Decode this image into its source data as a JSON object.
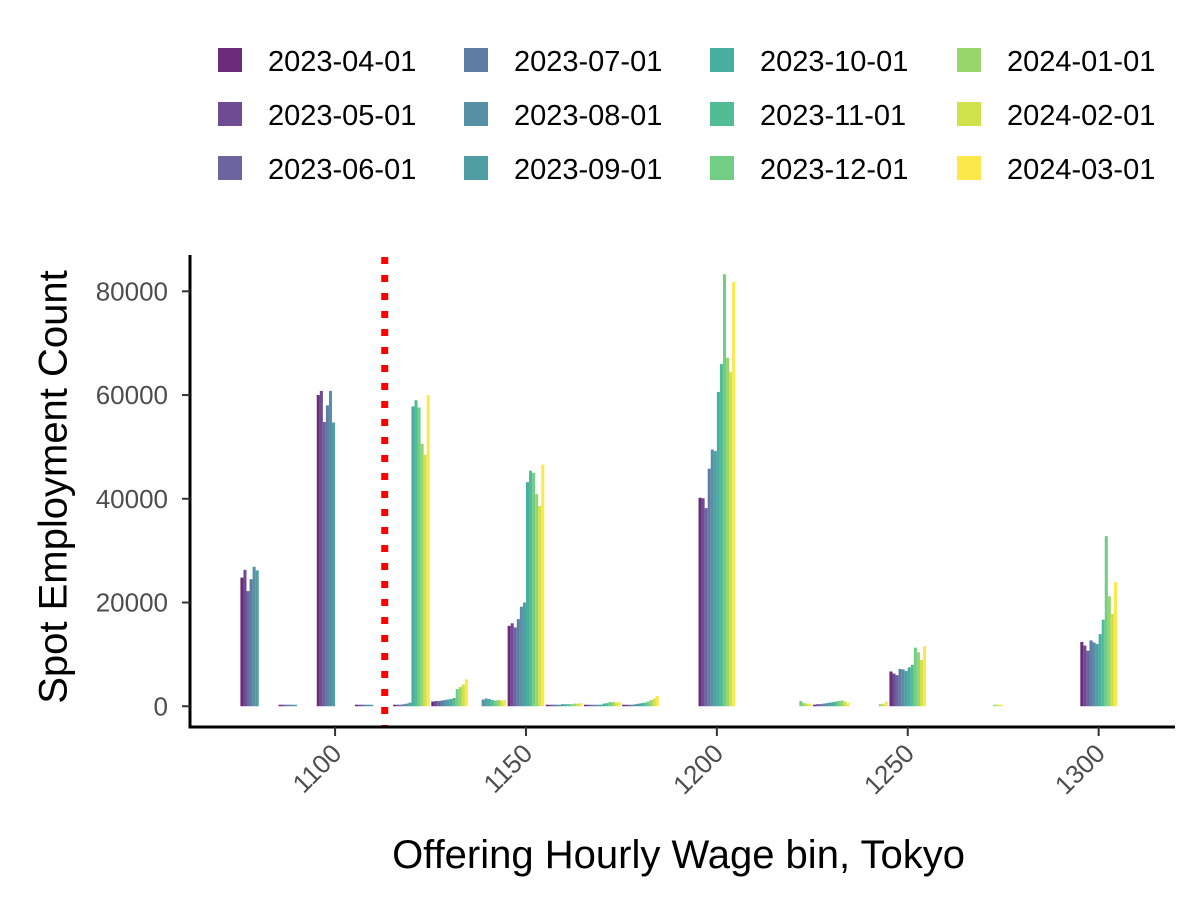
{
  "chart_data": {
    "type": "bar",
    "title": "",
    "xlabel": "Offering Hourly Wage bin, Tokyo",
    "ylabel": "Spot Employment Count",
    "xlim": [
      1062,
      1320
    ],
    "ylim": [
      -4000,
      87000
    ],
    "xticks": [
      1100,
      1150,
      1200,
      1250,
      1300
    ],
    "xtick_labels": [
      "1100",
      "1150",
      "1200",
      "1250",
      "1300"
    ],
    "yticks": [
      0,
      20000,
      40000,
      60000,
      80000
    ],
    "ytick_labels": [
      "0",
      "20000",
      "40000",
      "60000",
      "80000"
    ],
    "grid": false,
    "legend_position": "top",
    "reference_line": {
      "x": 1113,
      "color": "#ff0000",
      "style": "dotted"
    },
    "bins": [
      1080,
      1090,
      1100,
      1110,
      1120,
      1130,
      1140,
      1150,
      1160,
      1170,
      1180,
      1190,
      1200,
      1210,
      1220,
      1230,
      1240,
      1250,
      1260,
      1270,
      1280,
      1290,
      1300
    ],
    "series": [
      {
        "name": "2023-04-01",
        "color": "#6a2c78",
        "values": [
          24800,
          300,
          60000,
          300,
          300,
          900,
          0,
          15500,
          300,
          200,
          200,
          0,
          40200,
          0,
          0,
          300,
          0,
          6700,
          0,
          0,
          0,
          0,
          12400
        ]
      },
      {
        "name": "2023-05-01",
        "color": "#6f4b94",
        "values": [
          26300,
          300,
          60800,
          300,
          300,
          1000,
          0,
          16000,
          300,
          200,
          300,
          0,
          40100,
          0,
          0,
          400,
          0,
          6300,
          0,
          0,
          0,
          0,
          11700
        ]
      },
      {
        "name": "2023-06-01",
        "color": "#6a659f",
        "values": [
          22200,
          300,
          54800,
          300,
          300,
          1000,
          0,
          15200,
          300,
          200,
          300,
          0,
          38200,
          0,
          0,
          400,
          0,
          6000,
          0,
          0,
          0,
          0,
          10700
        ]
      },
      {
        "name": "2023-07-01",
        "color": "#5f7ca4",
        "values": [
          24500,
          300,
          58000,
          300,
          400,
          1100,
          0,
          16800,
          300,
          200,
          300,
          0,
          45800,
          0,
          0,
          500,
          0,
          7200,
          0,
          0,
          0,
          0,
          12700
        ]
      },
      {
        "name": "2023-08-01",
        "color": "#5690a5",
        "values": [
          26900,
          300,
          60800,
          300,
          500,
          1200,
          1300,
          19200,
          300,
          300,
          400,
          0,
          49500,
          0,
          0,
          600,
          0,
          7100,
          0,
          0,
          0,
          0,
          12300
        ]
      },
      {
        "name": "2023-09-01",
        "color": "#4f9ea4",
        "values": [
          26200,
          300,
          54700,
          300,
          700,
          1300,
          1500,
          20000,
          400,
          300,
          500,
          0,
          49200,
          0,
          0,
          700,
          0,
          6800,
          0,
          0,
          0,
          0,
          12000
        ]
      },
      {
        "name": "2023-10-01",
        "color": "#47aea0",
        "values": [
          null,
          null,
          null,
          null,
          57800,
          1400,
          1400,
          43200,
          400,
          500,
          600,
          0,
          60600,
          0,
          0,
          800,
          0,
          7500,
          0,
          0,
          0,
          0,
          13900
        ]
      },
      {
        "name": "2023-11-01",
        "color": "#52bd95",
        "values": [
          null,
          null,
          null,
          null,
          59000,
          1600,
          1200,
          45400,
          400,
          600,
          700,
          0,
          66000,
          0,
          0,
          900,
          0,
          8000,
          0,
          0,
          0,
          0,
          16700
        ]
      },
      {
        "name": "2023-12-01",
        "color": "#72cd85",
        "values": [
          null,
          null,
          null,
          null,
          57600,
          3300,
          1100,
          45000,
          400,
          800,
          900,
          0,
          83300,
          0,
          1000,
          1000,
          0,
          11300,
          0,
          0,
          0,
          0,
          32800
        ]
      },
      {
        "name": "2024-01-01",
        "color": "#98d66c",
        "values": [
          null,
          null,
          null,
          null,
          50600,
          3700,
          1200,
          40900,
          500,
          800,
          1200,
          0,
          67200,
          0,
          600,
          1100,
          400,
          10400,
          0,
          300,
          0,
          0,
          21200
        ]
      },
      {
        "name": "2024-02-01",
        "color": "#cfe14b",
        "values": [
          null,
          null,
          null,
          null,
          48500,
          4200,
          1100,
          38600,
          500,
          700,
          1500,
          0,
          64400,
          0,
          500,
          900,
          500,
          8900,
          0,
          300,
          0,
          0,
          17800
        ]
      },
      {
        "name": "2024-03-01",
        "color": "#fde84a",
        "values": [
          null,
          null,
          null,
          null,
          60000,
          5200,
          1200,
          46600,
          600,
          800,
          2000,
          0,
          81800,
          0,
          500,
          700,
          900,
          11600,
          0,
          300,
          0,
          0,
          23900
        ]
      }
    ]
  }
}
